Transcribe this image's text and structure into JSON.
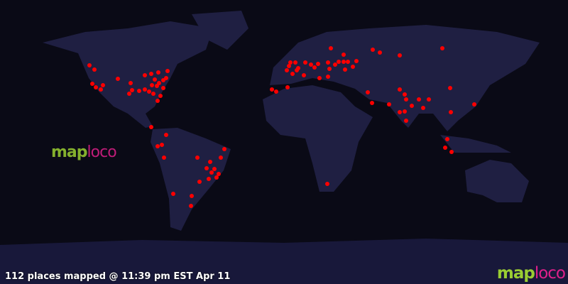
{
  "status_text": "112 places mapped @ 11:39 pm EST Apr 11",
  "logo": {
    "part1": "map",
    "part2": "loco"
  },
  "colors": {
    "ocean": "#0a0a16",
    "land": "#23234a",
    "marker": "#ff0000",
    "logo_green": "#9acd32",
    "logo_pink": "#e0208a"
  },
  "marker_icon": "red-dot"
}
